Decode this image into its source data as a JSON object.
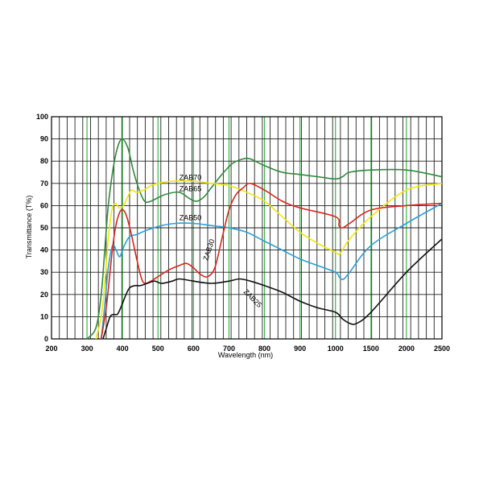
{
  "chart_data": {
    "type": "line",
    "xlabel": "Wavelength (nm)",
    "ylabel": "Transmittance (T%)",
    "x_ticks": [
      "200",
      "300",
      "400",
      "500",
      "600",
      "700",
      "800",
      "900",
      "1000",
      "1500",
      "2000",
      "2500"
    ],
    "y_ticks": [
      "0",
      "10",
      "20",
      "30",
      "40",
      "50",
      "60",
      "70",
      "80",
      "90",
      "100"
    ],
    "ylim": [
      0,
      100
    ],
    "grid": true,
    "series": [
      {
        "name": "ZAB70",
        "color": "#2e8b3a",
        "points": [
          [
            300,
            0
          ],
          [
            325,
            5
          ],
          [
            340,
            20
          ],
          [
            350,
            40
          ],
          [
            360,
            60
          ],
          [
            372,
            75
          ],
          [
            384,
            85
          ],
          [
            398,
            90
          ],
          [
            415,
            86
          ],
          [
            430,
            76
          ],
          [
            445,
            68
          ],
          [
            462,
            62
          ],
          [
            480,
            62
          ],
          [
            520,
            65
          ],
          [
            560,
            66
          ],
          [
            590,
            63
          ],
          [
            610,
            62
          ],
          [
            630,
            64
          ],
          [
            650,
            68
          ],
          [
            680,
            74
          ],
          [
            710,
            79
          ],
          [
            740,
            81
          ],
          [
            760,
            81
          ],
          [
            800,
            78
          ],
          [
            850,
            75
          ],
          [
            900,
            74
          ],
          [
            950,
            73
          ],
          [
            1000,
            72
          ],
          [
            1100,
            73
          ],
          [
            1200,
            75
          ],
          [
            1500,
            76
          ],
          [
            2000,
            76
          ],
          [
            2500,
            73
          ]
        ]
      },
      {
        "name": "ZAB65",
        "color": "#f2e60a",
        "points": [
          [
            325,
            0
          ],
          [
            340,
            10
          ],
          [
            350,
            25
          ],
          [
            360,
            45
          ],
          [
            370,
            58
          ],
          [
            380,
            61
          ],
          [
            390,
            59
          ],
          [
            402,
            60
          ],
          [
            415,
            64
          ],
          [
            425,
            67
          ],
          [
            440,
            66
          ],
          [
            460,
            67
          ],
          [
            480,
            69
          ],
          [
            500,
            70
          ],
          [
            540,
            71
          ],
          [
            600,
            71
          ],
          [
            650,
            70
          ],
          [
            700,
            69
          ],
          [
            750,
            66
          ],
          [
            800,
            62
          ],
          [
            850,
            55
          ],
          [
            900,
            48
          ],
          [
            950,
            43
          ],
          [
            1000,
            39
          ],
          [
            1050,
            38
          ],
          [
            1100,
            40
          ],
          [
            1200,
            45
          ],
          [
            1500,
            55
          ],
          [
            2000,
            67
          ],
          [
            2500,
            70
          ]
        ]
      },
      {
        "name": "ZAB50",
        "color": "#2b9fd9",
        "points": [
          [
            340,
            0
          ],
          [
            350,
            15
          ],
          [
            360,
            32
          ],
          [
            372,
            42
          ],
          [
            382,
            40
          ],
          [
            392,
            37
          ],
          [
            405,
            42
          ],
          [
            420,
            46
          ],
          [
            440,
            47
          ],
          [
            470,
            49
          ],
          [
            510,
            51
          ],
          [
            550,
            52
          ],
          [
            600,
            52
          ],
          [
            650,
            51
          ],
          [
            700,
            50
          ],
          [
            750,
            48
          ],
          [
            800,
            44
          ],
          [
            850,
            40
          ],
          [
            900,
            36
          ],
          [
            950,
            33
          ],
          [
            1000,
            30
          ],
          [
            1050,
            28
          ],
          [
            1080,
            27
          ],
          [
            1120,
            27
          ],
          [
            1200,
            30
          ],
          [
            1500,
            42
          ],
          [
            2000,
            52
          ],
          [
            2500,
            61
          ]
        ]
      },
      {
        "name": "ZAB30",
        "color": "#d9261c",
        "points": [
          [
            340,
            0
          ],
          [
            355,
            15
          ],
          [
            370,
            38
          ],
          [
            380,
            50
          ],
          [
            392,
            57
          ],
          [
            402,
            58
          ],
          [
            412,
            55
          ],
          [
            425,
            47
          ],
          [
            440,
            36
          ],
          [
            452,
            28
          ],
          [
            462,
            25
          ],
          [
            480,
            26
          ],
          [
            500,
            28
          ],
          [
            530,
            31
          ],
          [
            560,
            33
          ],
          [
            580,
            34
          ],
          [
            600,
            32
          ],
          [
            620,
            29
          ],
          [
            640,
            28
          ],
          [
            660,
            32
          ],
          [
            680,
            45
          ],
          [
            700,
            58
          ],
          [
            720,
            65
          ],
          [
            740,
            68
          ],
          [
            760,
            70
          ],
          [
            800,
            67
          ],
          [
            850,
            62
          ],
          [
            900,
            59
          ],
          [
            1000,
            55
          ],
          [
            1050,
            51
          ],
          [
            1100,
            50
          ],
          [
            1200,
            52
          ],
          [
            1500,
            58
          ],
          [
            2000,
            60
          ],
          [
            2500,
            61
          ]
        ]
      },
      {
        "name": "ZAB25",
        "color": "#111111",
        "points": [
          [
            345,
            0
          ],
          [
            355,
            5
          ],
          [
            365,
            10
          ],
          [
            375,
            11
          ],
          [
            385,
            11
          ],
          [
            392,
            13
          ],
          [
            400,
            16
          ],
          [
            410,
            20
          ],
          [
            420,
            23
          ],
          [
            435,
            24
          ],
          [
            450,
            24
          ],
          [
            470,
            25
          ],
          [
            490,
            26
          ],
          [
            510,
            25
          ],
          [
            540,
            26
          ],
          [
            560,
            27
          ],
          [
            600,
            26
          ],
          [
            650,
            25
          ],
          [
            700,
            26
          ],
          [
            730,
            27
          ],
          [
            760,
            26
          ],
          [
            800,
            24
          ],
          [
            850,
            21
          ],
          [
            900,
            17
          ],
          [
            950,
            14
          ],
          [
            1000,
            12
          ],
          [
            1100,
            9
          ],
          [
            1200,
            7
          ],
          [
            1300,
            7
          ],
          [
            1500,
            12
          ],
          [
            2000,
            30
          ],
          [
            2500,
            45
          ]
        ]
      }
    ],
    "annotations": [
      {
        "text": "ZAB70",
        "series": "ZAB70"
      },
      {
        "text": "ZAB65",
        "series": "ZAB65"
      },
      {
        "text": "ZAB50",
        "series": "ZAB50"
      },
      {
        "text": "ZAB30",
        "series": "ZAB30"
      },
      {
        "text": "ZAB25",
        "series": "ZAB25"
      }
    ]
  }
}
